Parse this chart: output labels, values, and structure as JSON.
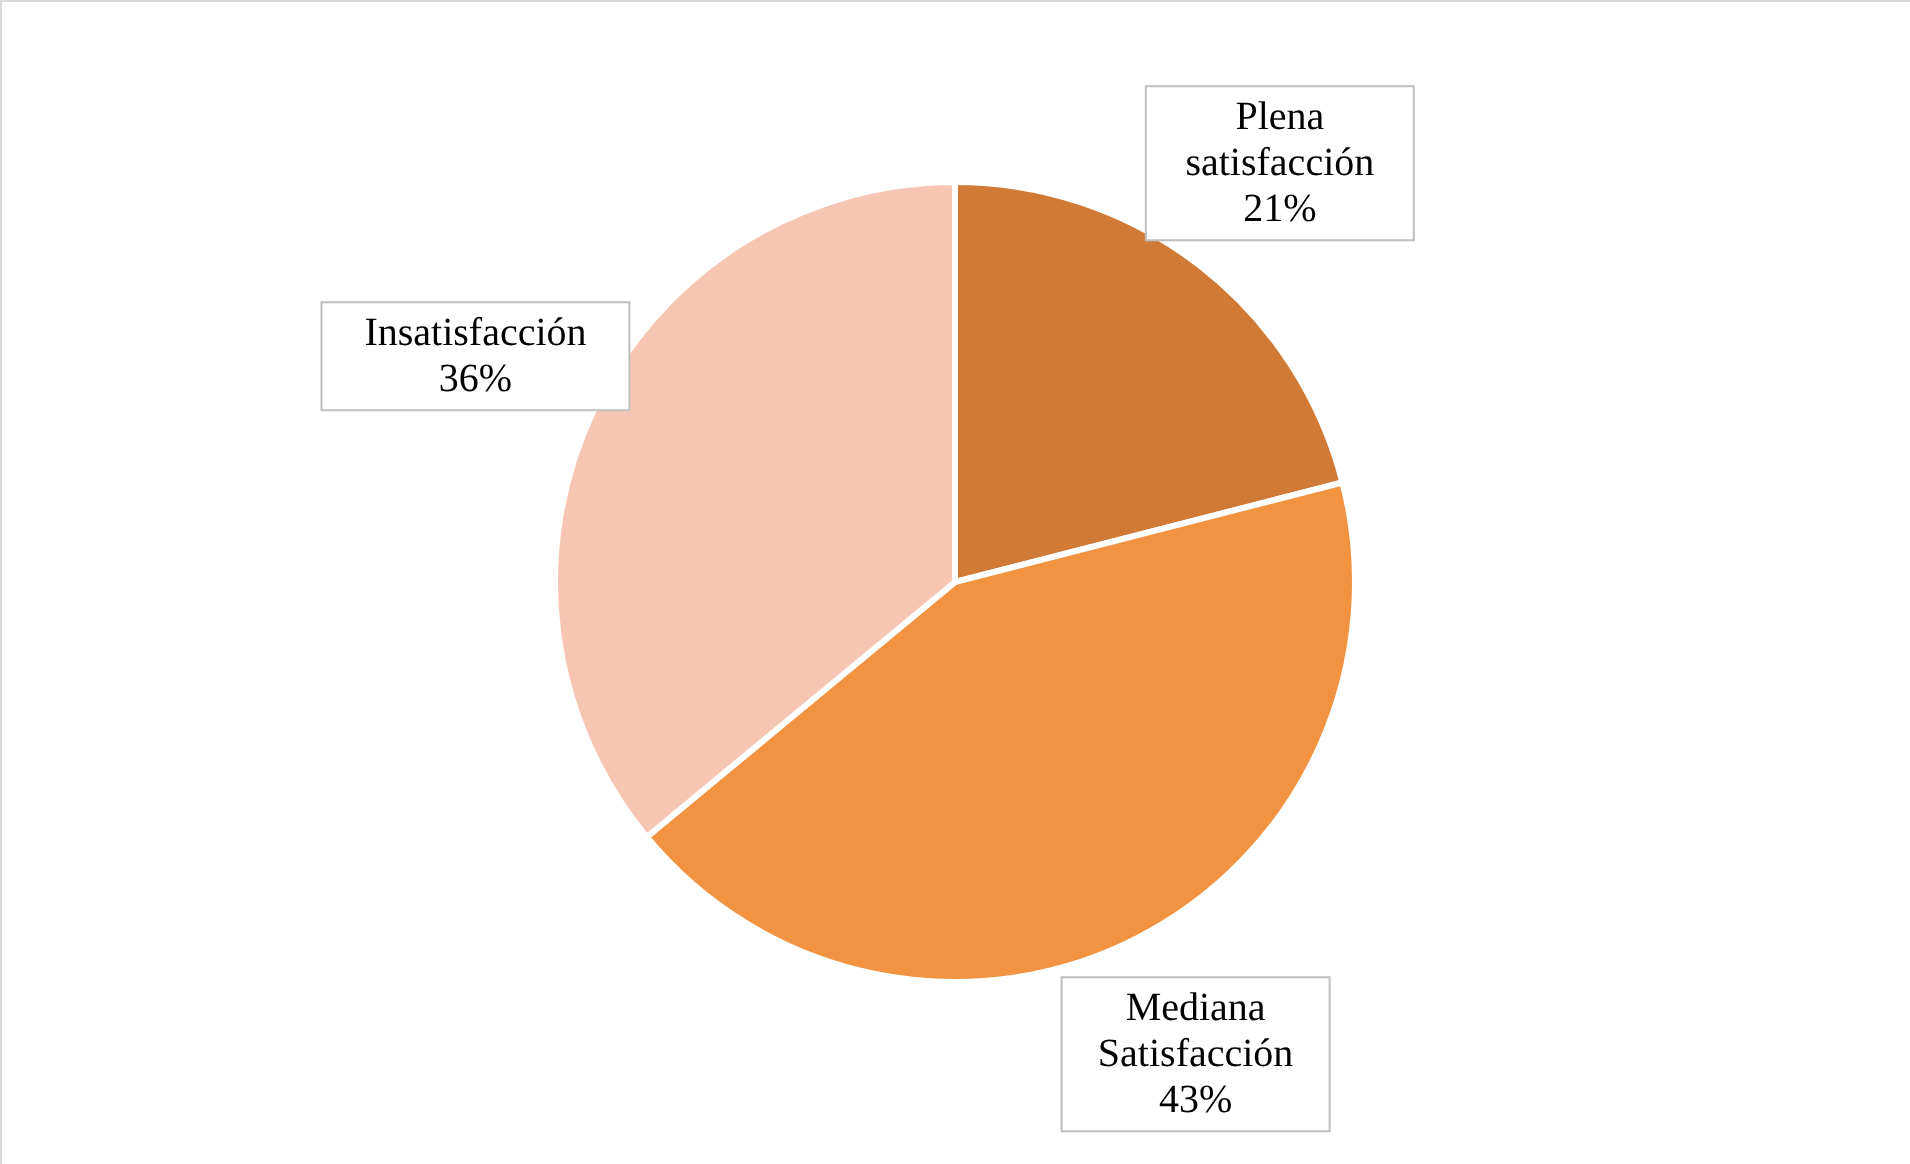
{
  "chart_data": {
    "type": "pie",
    "categories": [
      "Plena satisfacción",
      "Mediana Satisfacción",
      "Insatisfacción"
    ],
    "values": [
      21,
      43,
      36
    ],
    "value_labels": [
      "21%",
      "43%",
      "36%"
    ],
    "colors": [
      "#d07a35",
      "#f29342",
      "#f6c6b2"
    ]
  }
}
